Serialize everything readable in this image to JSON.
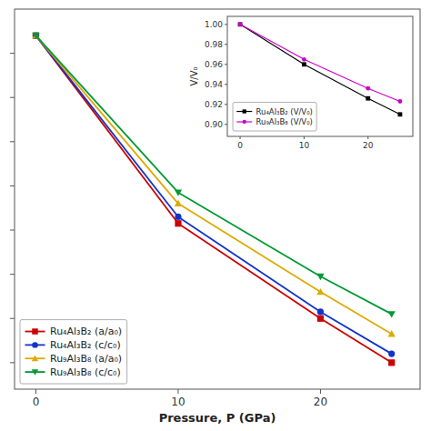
{
  "chart_data": [
    {
      "type": "line",
      "x": [
        0,
        10,
        20,
        25
      ],
      "series": [
        {
          "name": "Ru₄Al₃B₂ (a/a₀)",
          "color": "#cc0000",
          "marker": "square",
          "values": [
            0.988,
            0.903,
            0.86,
            0.84
          ]
        },
        {
          "name": "Ru₄Al₃B₂ (c/c₀)",
          "color": "#1133cc",
          "marker": "circle",
          "values": [
            0.988,
            0.906,
            0.863,
            0.844
          ]
        },
        {
          "name": "Ru₉Al₃B₈ (a/a₀)",
          "color": "#ddaa00",
          "marker": "triangle-up",
          "values": [
            0.988,
            0.912,
            0.872,
            0.853
          ]
        },
        {
          "name": "Ru₉Al₃B₈ (c/c₀)",
          "color": "#009933",
          "marker": "triangle-down",
          "values": [
            0.988,
            0.917,
            0.879,
            0.862
          ]
        }
      ],
      "xlabel": "Pressure, P (GPa)",
      "xlim": [
        -1.5,
        27
      ],
      "ylim": [
        0.828,
        1.0
      ],
      "xticks": [
        0,
        10,
        20
      ],
      "yticks": [
        0.84,
        0.86,
        0.88,
        0.9,
        0.92,
        0.94,
        0.96,
        0.98
      ],
      "tick_labels": "x",
      "grid": false,
      "legend": "lower left"
    },
    {
      "type": "line",
      "x": [
        0,
        10,
        20,
        25
      ],
      "series": [
        {
          "name": "Ru₄Al₃B₂ (V/V₀)",
          "color": "#000000",
          "marker": "square",
          "values": [
            1.0,
            0.96,
            0.926,
            0.91
          ]
        },
        {
          "name": "Ru₉Al₃B₈ (V/V₀)",
          "color": "#cc00cc",
          "marker": "circle",
          "values": [
            1.0,
            0.965,
            0.936,
            0.923
          ]
        }
      ],
      "ylabel": "V/V₀",
      "xlim": [
        -2,
        27
      ],
      "ylim": [
        0.888,
        1.008
      ],
      "xticks": [
        0,
        10,
        20
      ],
      "yticks": [
        {
          "value": 0.9,
          "label": "0.90"
        },
        {
          "value": 0.92,
          "label": "0.92"
        },
        {
          "value": 0.94,
          "label": "0.94"
        },
        {
          "value": 0.96,
          "label": "0.96"
        },
        {
          "value": 0.98,
          "label": "0.98"
        },
        {
          "value": 1.0,
          "label": "1.00"
        }
      ],
      "grid": false,
      "legend": "lower left"
    }
  ]
}
